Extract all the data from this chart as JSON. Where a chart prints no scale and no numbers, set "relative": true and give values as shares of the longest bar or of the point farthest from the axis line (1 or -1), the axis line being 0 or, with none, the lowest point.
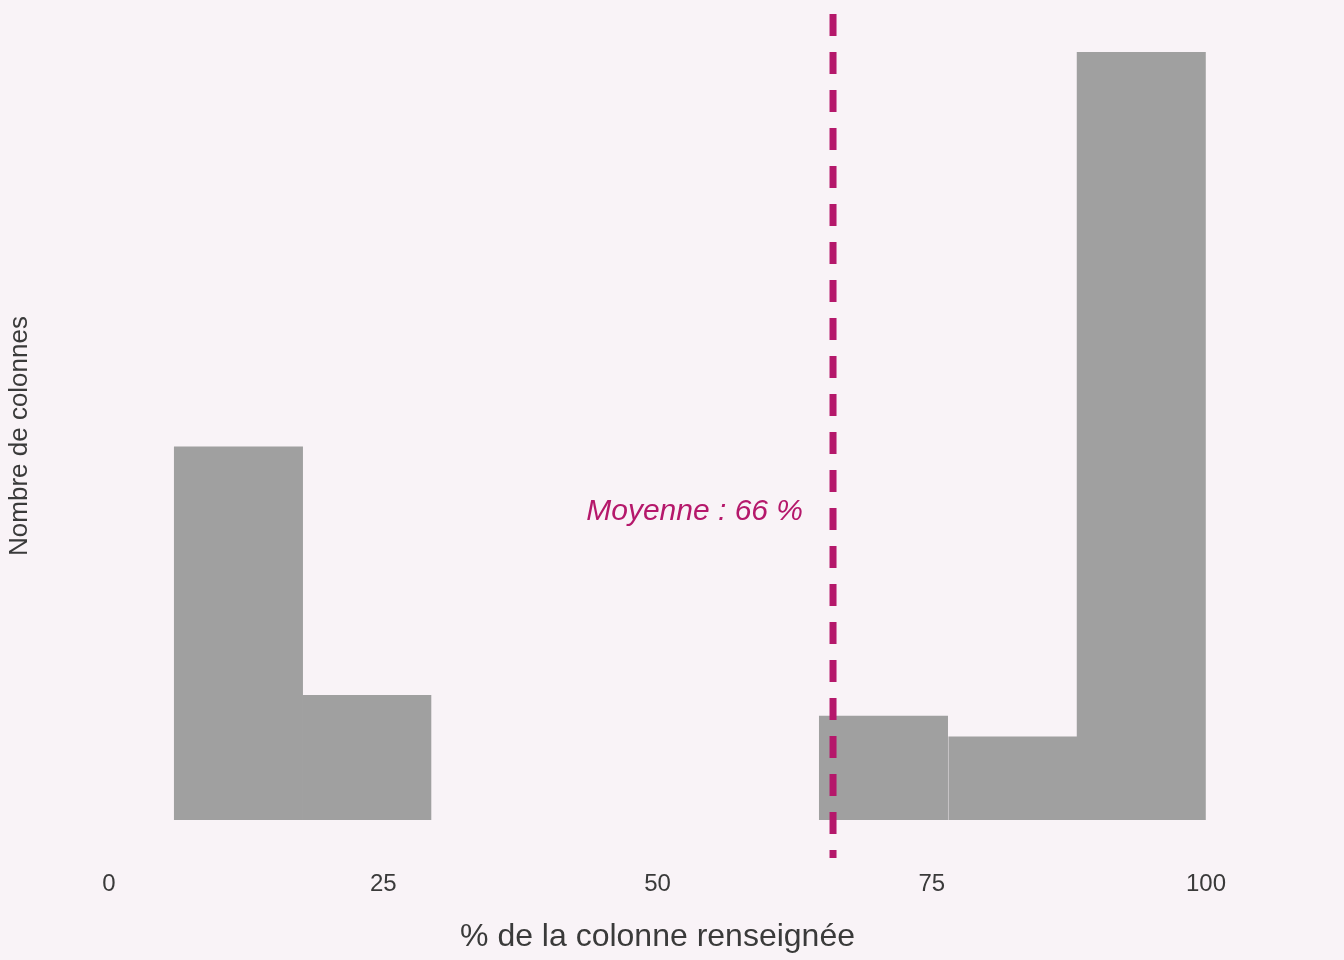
{
  "chart_data": {
    "type": "bar",
    "relative": true,
    "xlabel": "% de la colonne renseignée",
    "ylabel": "Nombre de colonnes",
    "x": [
      11.8,
      23.5,
      70.6,
      82.4,
      94.1
    ],
    "values": [
      0.486,
      0.162,
      0.135,
      0.108,
      1
    ],
    "color": "#a0a0a0",
    "xlim": [
      0,
      100
    ],
    "xticks": [
      0,
      25,
      50,
      75,
      100
    ],
    "ref_lines": [
      {
        "axis": "x",
        "value": 66,
        "label": "Moyenne : 66 %",
        "color": "#b5186b",
        "line_style": "dashed"
      }
    ]
  }
}
